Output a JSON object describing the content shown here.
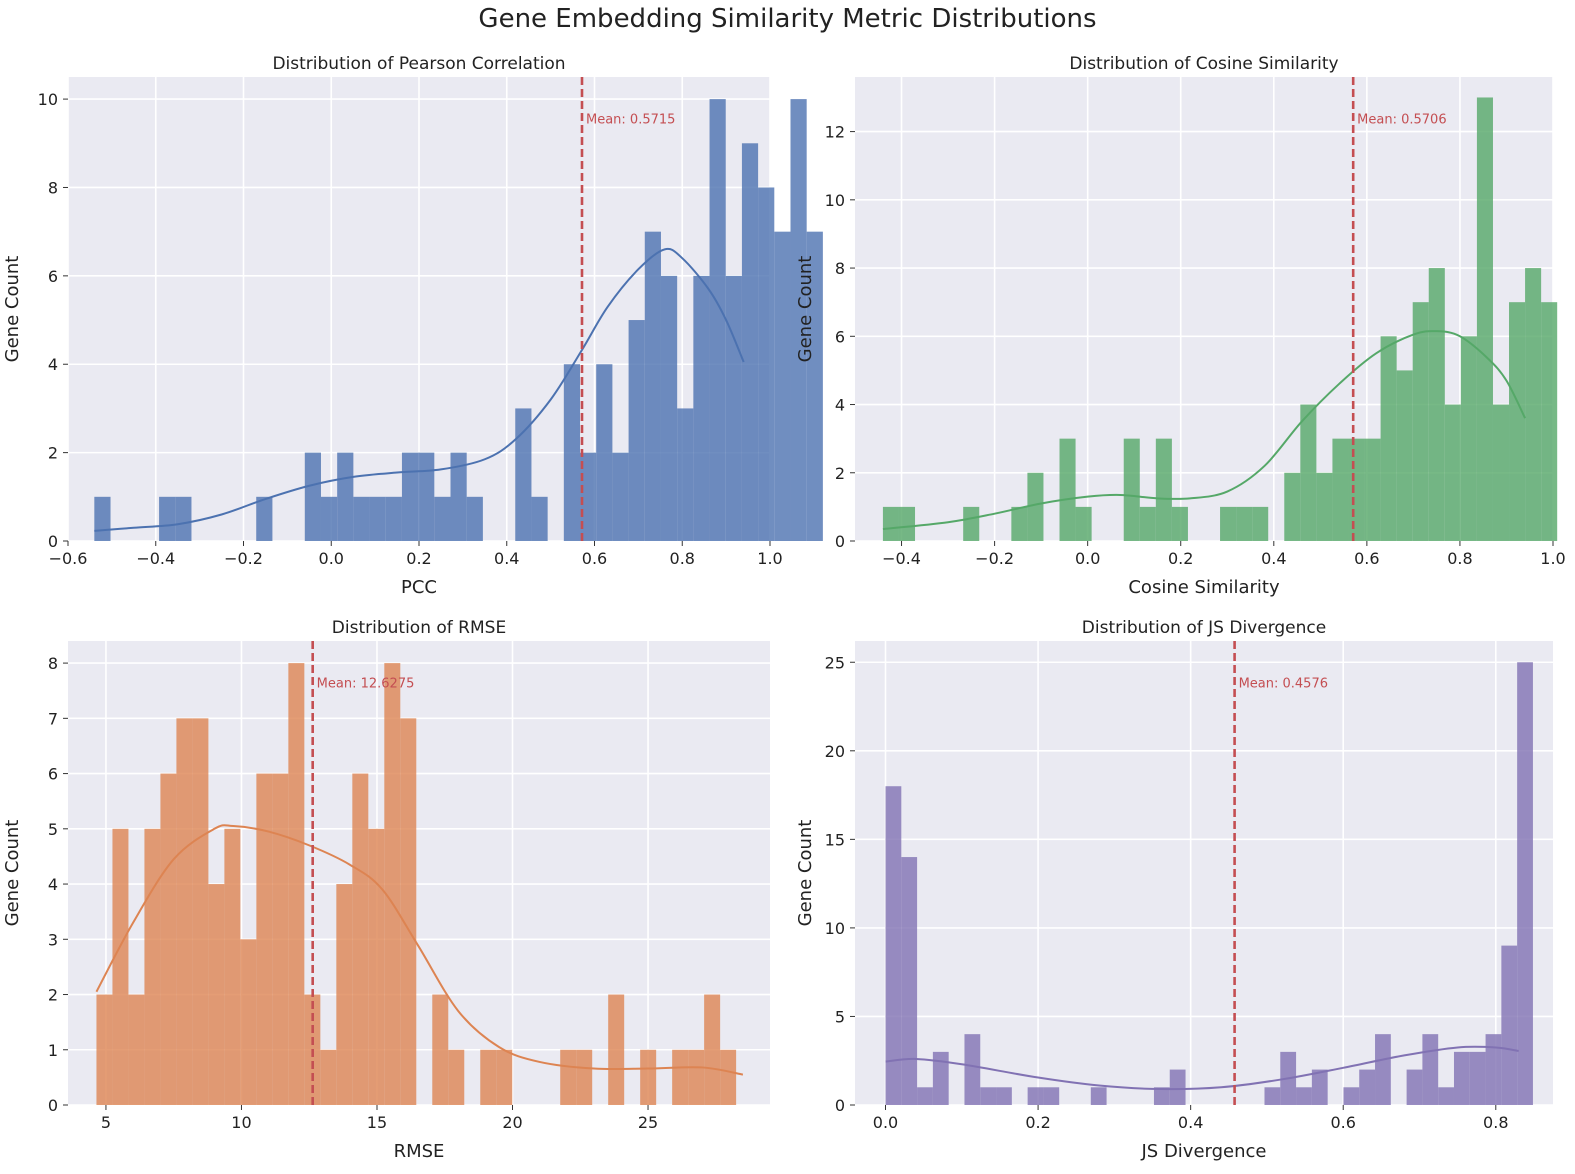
{
  "figure": {
    "title": "Gene Embedding Similarity Metric Distributions"
  },
  "chart_data": [
    {
      "type": "histogram",
      "title": "Distribution of Pearson Correlation",
      "xlabel": "PCC",
      "ylabel": "Gene Count",
      "xlim": [
        -0.6,
        1.0
      ],
      "ylim": [
        0,
        10.5
      ],
      "xticks": [
        "−0.6",
        "−0.4",
        "−0.2",
        "0.0",
        "0.2",
        "0.4",
        "0.6",
        "0.8",
        "1.0"
      ],
      "xtick_values": [
        -0.6,
        -0.4,
        -0.2,
        0.0,
        0.2,
        0.4,
        0.6,
        0.8,
        1.0
      ],
      "yticks": [
        "0",
        "2",
        "4",
        "6",
        "8",
        "10"
      ],
      "ytick_values": [
        0,
        2,
        4,
        6,
        8,
        10
      ],
      "color": "#4C72B0",
      "bins": {
        "start": -0.54,
        "width": 0.0369,
        "counts": [
          1,
          0,
          0,
          0,
          1,
          1,
          0,
          0,
          0,
          0,
          1,
          0,
          0,
          2,
          1,
          2,
          1,
          1,
          1,
          2,
          2,
          1,
          2,
          1,
          0,
          0,
          3,
          1,
          0,
          4,
          2,
          4,
          2,
          5,
          7,
          6,
          3,
          6,
          10,
          6,
          9,
          8,
          7,
          10,
          7
        ]
      },
      "kde": [
        [
          -0.54,
          0.23
        ],
        [
          -0.45,
          0.3
        ],
        [
          -0.35,
          0.38
        ],
        [
          -0.25,
          0.6
        ],
        [
          -0.15,
          0.95
        ],
        [
          -0.05,
          1.25
        ],
        [
          0.05,
          1.45
        ],
        [
          0.15,
          1.55
        ],
        [
          0.25,
          1.62
        ],
        [
          0.35,
          1.85
        ],
        [
          0.42,
          2.3
        ],
        [
          0.5,
          3.2
        ],
        [
          0.57,
          4.3
        ],
        [
          0.63,
          5.3
        ],
        [
          0.7,
          6.15
        ],
        [
          0.76,
          6.6
        ],
        [
          0.8,
          6.4
        ],
        [
          0.86,
          5.7
        ],
        [
          0.9,
          5.0
        ],
        [
          0.94,
          4.05
        ]
      ],
      "mean": 0.5715,
      "mean_label": "Mean: 0.5715"
    },
    {
      "type": "histogram",
      "title": "Distribution of Cosine Similarity",
      "xlabel": "Cosine Similarity",
      "ylabel": "Gene Count",
      "xlim": [
        -0.5,
        1.0
      ],
      "ylim": [
        0,
        13.6
      ],
      "xticks": [
        "−0.4",
        "−0.2",
        "0.0",
        "0.2",
        "0.4",
        "0.6",
        "0.8",
        "1.0"
      ],
      "xtick_values": [
        -0.4,
        -0.2,
        0.0,
        0.2,
        0.4,
        0.6,
        0.8,
        1.0
      ],
      "yticks": [
        "0",
        "2",
        "4",
        "6",
        "8",
        "10",
        "12"
      ],
      "ytick_values": [
        0,
        2,
        4,
        6,
        8,
        10,
        12
      ],
      "color": "#55A868",
      "bins": {
        "start": -0.44,
        "width": 0.0345,
        "counts": [
          1,
          1,
          0,
          0,
          0,
          1,
          0,
          0,
          1,
          2,
          0,
          3,
          1,
          0,
          0,
          3,
          1,
          3,
          1,
          0,
          0,
          1,
          1,
          1,
          0,
          2,
          4,
          2,
          3,
          3,
          3,
          6,
          5,
          7,
          8,
          4,
          6,
          13,
          4,
          7,
          8,
          7
        ]
      },
      "kde": [
        [
          -0.44,
          0.35
        ],
        [
          -0.3,
          0.55
        ],
        [
          -0.2,
          0.8
        ],
        [
          -0.1,
          1.1
        ],
        [
          0.0,
          1.3
        ],
        [
          0.07,
          1.35
        ],
        [
          0.15,
          1.25
        ],
        [
          0.22,
          1.25
        ],
        [
          0.3,
          1.45
        ],
        [
          0.38,
          2.2
        ],
        [
          0.46,
          3.5
        ],
        [
          0.54,
          4.6
        ],
        [
          0.62,
          5.5
        ],
        [
          0.7,
          6.05
        ],
        [
          0.75,
          6.15
        ],
        [
          0.8,
          6.0
        ],
        [
          0.86,
          5.35
        ],
        [
          0.9,
          4.7
        ],
        [
          0.94,
          3.6
        ]
      ],
      "mean": 0.5706,
      "mean_label": "Mean: 0.5706"
    },
    {
      "type": "histogram",
      "title": "Distribution of RMSE",
      "xlabel": "RMSE",
      "ylabel": "Gene Count",
      "xlim": [
        3.6,
        29.5
      ],
      "ylim": [
        0,
        8.4
      ],
      "xticks": [
        "5",
        "10",
        "15",
        "20",
        "25"
      ],
      "xtick_values": [
        5,
        10,
        15,
        20,
        25
      ],
      "yticks": [
        "0",
        "1",
        "2",
        "3",
        "4",
        "5",
        "6",
        "7",
        "8"
      ],
      "ytick_values": [
        0,
        1,
        2,
        3,
        4,
        5,
        6,
        7,
        8
      ],
      "color": "#DD8452",
      "bins": {
        "start": 4.65,
        "width": 0.59,
        "counts": [
          2,
          5,
          2,
          5,
          6,
          7,
          7,
          4,
          5,
          3,
          6,
          6,
          8,
          2,
          1,
          4,
          6,
          5,
          8,
          7,
          0,
          2,
          1,
          0,
          1,
          1,
          0,
          0,
          0,
          1,
          1,
          0,
          2,
          0,
          1,
          0,
          1,
          1,
          2,
          1
        ]
      },
      "kde": [
        [
          4.65,
          2.05
        ],
        [
          6.0,
          3.3
        ],
        [
          7.5,
          4.45
        ],
        [
          9.0,
          5.0
        ],
        [
          9.7,
          5.05
        ],
        [
          11.0,
          4.95
        ],
        [
          12.5,
          4.7
        ],
        [
          14.0,
          4.35
        ],
        [
          15.2,
          3.9
        ],
        [
          16.5,
          2.9
        ],
        [
          18.0,
          1.7
        ],
        [
          19.5,
          1.05
        ],
        [
          21.0,
          0.78
        ],
        [
          23.0,
          0.66
        ],
        [
          25.0,
          0.66
        ],
        [
          27.0,
          0.68
        ],
        [
          28.5,
          0.55
        ]
      ],
      "mean": 12.6275,
      "mean_label": "Mean: 12.6275"
    },
    {
      "type": "histogram",
      "title": "Distribution of JS Divergence",
      "xlabel": "JS Divergence",
      "ylabel": "Gene Count",
      "xlim": [
        -0.04,
        0.875
      ],
      "ylim": [
        0,
        26.2
      ],
      "xticks": [
        "0.0",
        "0.2",
        "0.4",
        "0.6",
        "0.8"
      ],
      "xtick_values": [
        0.0,
        0.2,
        0.4,
        0.6,
        0.8
      ],
      "yticks": [
        "0",
        "5",
        "10",
        "15",
        "20",
        "25"
      ],
      "ytick_values": [
        0,
        5,
        10,
        15,
        20,
        25
      ],
      "color": "#8172B3",
      "bins": {
        "start": 0.0,
        "width": 0.0207,
        "counts": [
          18,
          14,
          1,
          3,
          0,
          4,
          1,
          1,
          0,
          1,
          1,
          0,
          0,
          1,
          0,
          0,
          0,
          1,
          2,
          0,
          0,
          0,
          0,
          0,
          1,
          3,
          1,
          2,
          0,
          1,
          2,
          4,
          0,
          2,
          4,
          1,
          3,
          3,
          4,
          9,
          25
        ]
      },
      "kde": [
        [
          0.0,
          2.45
        ],
        [
          0.04,
          2.6
        ],
        [
          0.1,
          2.3
        ],
        [
          0.2,
          1.55
        ],
        [
          0.28,
          1.1
        ],
        [
          0.36,
          0.9
        ],
        [
          0.44,
          1.0
        ],
        [
          0.52,
          1.45
        ],
        [
          0.6,
          2.1
        ],
        [
          0.68,
          2.8
        ],
        [
          0.75,
          3.25
        ],
        [
          0.8,
          3.25
        ],
        [
          0.83,
          3.05
        ]
      ],
      "mean": 0.4576,
      "mean_label": "Mean: 0.4576"
    }
  ]
}
